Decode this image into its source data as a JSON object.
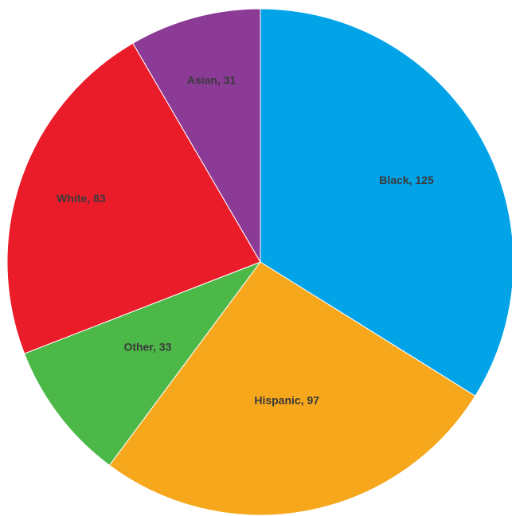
{
  "chart_data": {
    "type": "pie",
    "title": "",
    "start_angle_deg": 0,
    "direction": "clockwise",
    "legend": "none",
    "slices": [
      {
        "label": "Black",
        "value": 125,
        "color": "#03a3e8",
        "text": "Black, 125"
      },
      {
        "label": "Hispanic",
        "value": 97,
        "color": "#f6a71c",
        "text": "Hispanic, 97"
      },
      {
        "label": "Other",
        "value": 33,
        "color": "#4cb848",
        "text": "Other, 33"
      },
      {
        "label": "White",
        "value": 83,
        "color": "#ea1c2a",
        "text": "White, 83"
      },
      {
        "label": "Asian",
        "value": 31,
        "color": "#8b3b96",
        "text": "Asian, 31"
      }
    ]
  }
}
